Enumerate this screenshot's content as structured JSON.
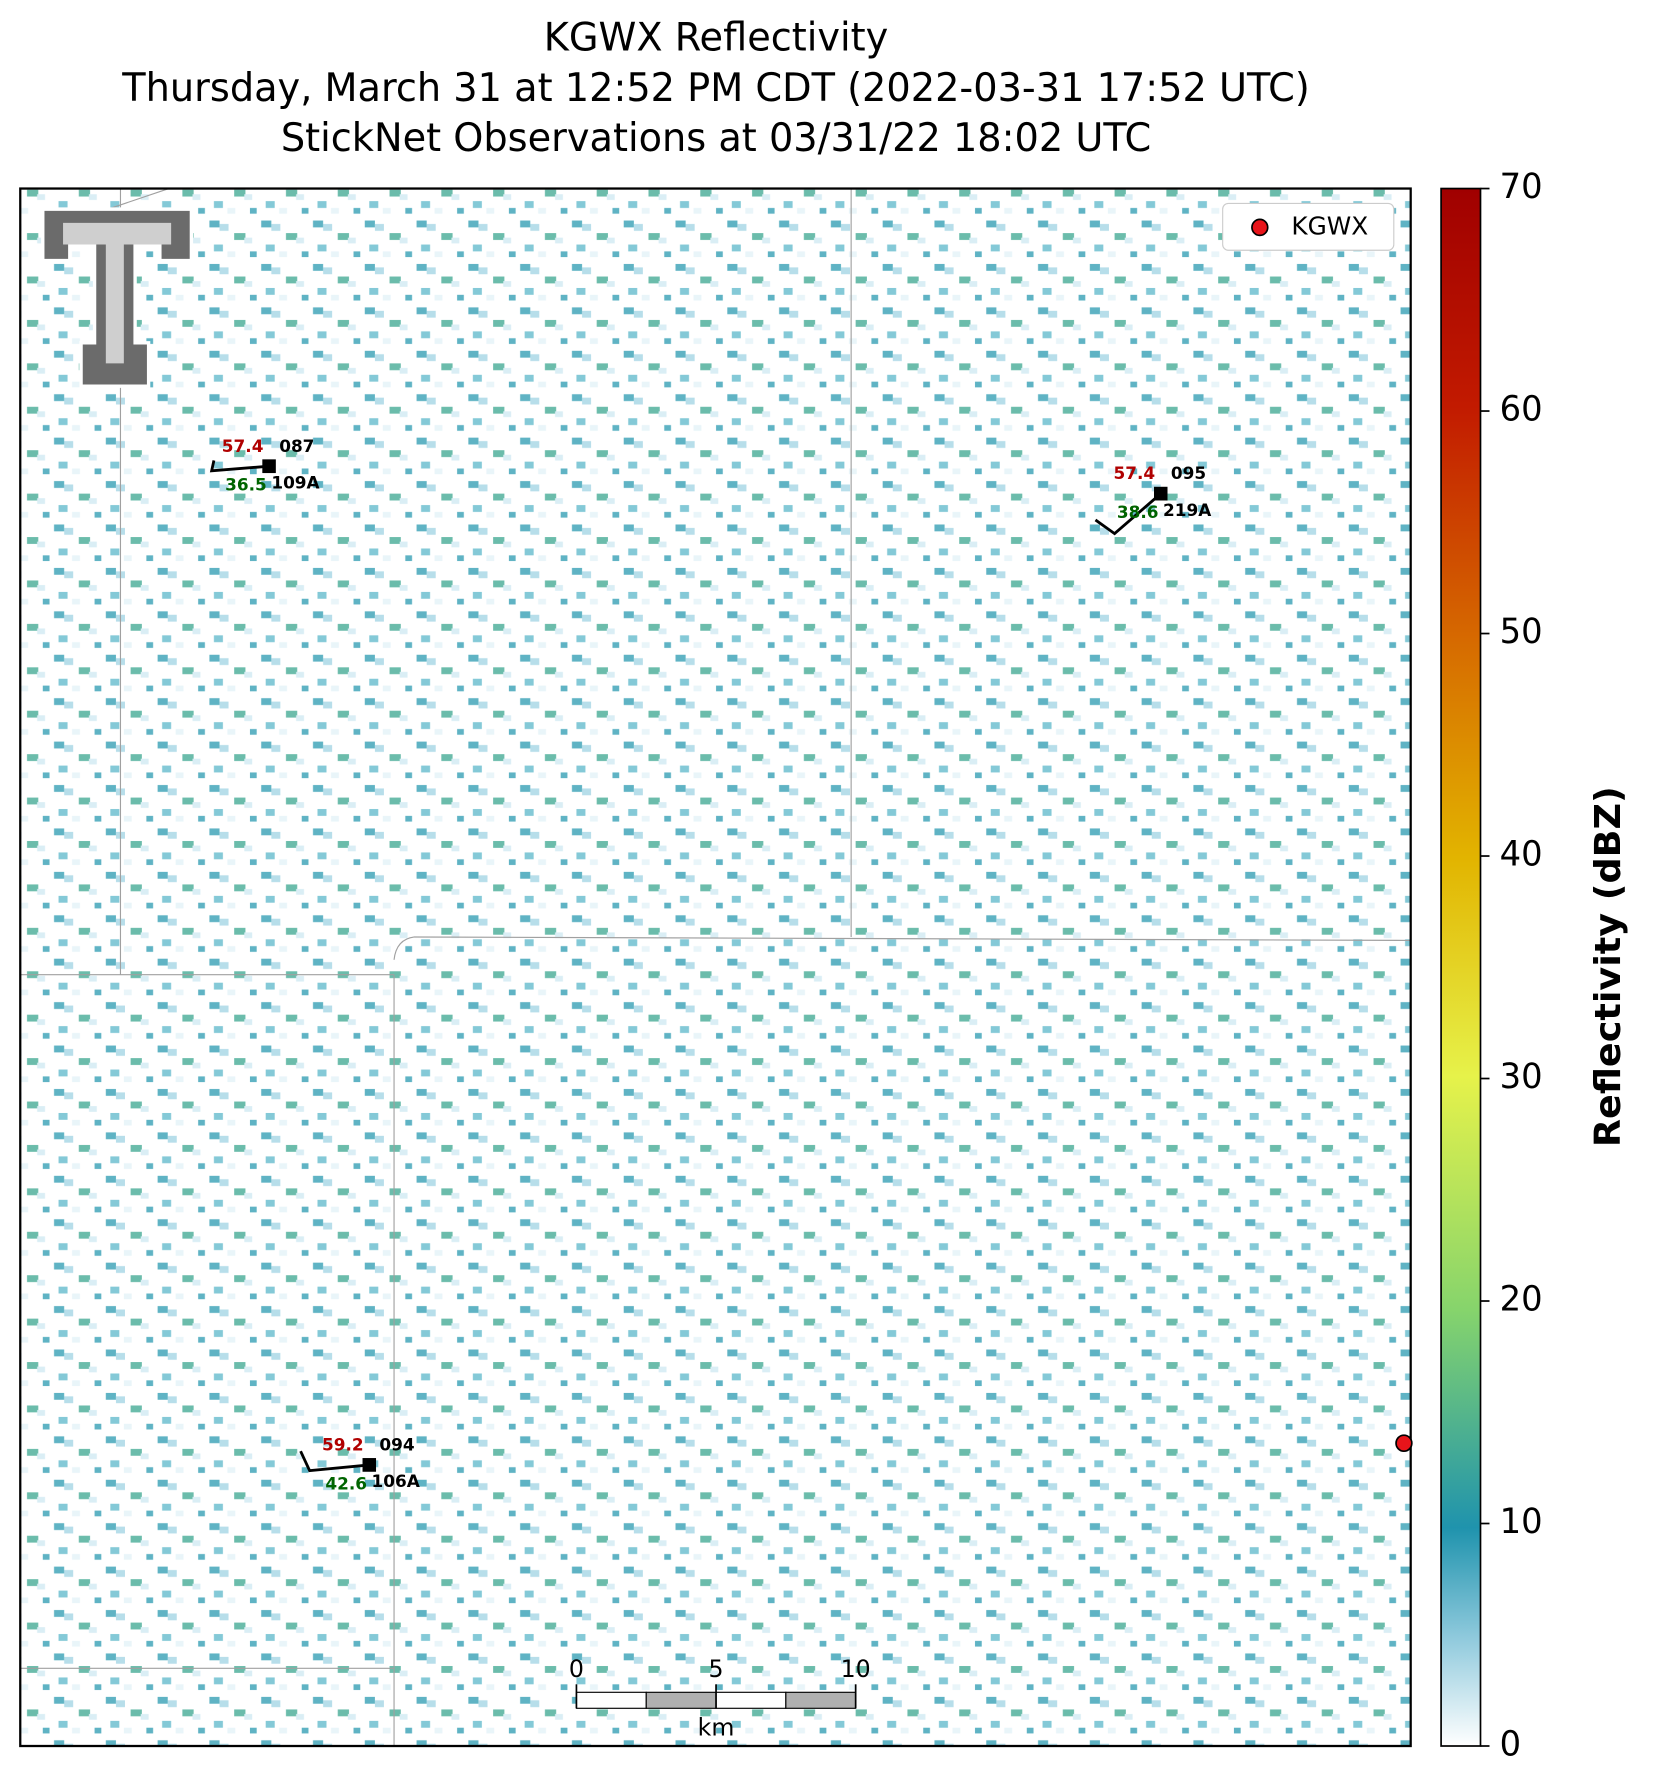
{
  "chart_data": {
    "type": "radar-map",
    "title": [
      "KGWX Reflectivity",
      "Thursday, March 31 at 12:52 PM CDT (2022-03-31 17:52 UTC)",
      "StickNet Observations at 03/31/22 18:02 UTC"
    ],
    "legend": {
      "label": "KGWX",
      "color": "#e8141a",
      "corner": "upper right"
    },
    "colorbar": {
      "label": "Reflectivity (dBZ)",
      "lim": [
        0,
        70
      ],
      "ticks": [
        0,
        10,
        20,
        30,
        40,
        50,
        60,
        70
      ]
    },
    "stations": [
      {
        "temperature": 57.4,
        "dewpoint": 36.5,
        "station": "087",
        "probe": "109A"
      },
      {
        "temperature": 57.4,
        "dewpoint": 38.6,
        "station": "095",
        "probe": "219A"
      },
      {
        "temperature": 59.2,
        "dewpoint": 42.6,
        "station": "094",
        "probe": "106A"
      }
    ],
    "scale_bar": {
      "lim": [
        0,
        10
      ],
      "ticks": [
        0,
        5,
        10
      ],
      "unit": "km"
    }
  }
}
